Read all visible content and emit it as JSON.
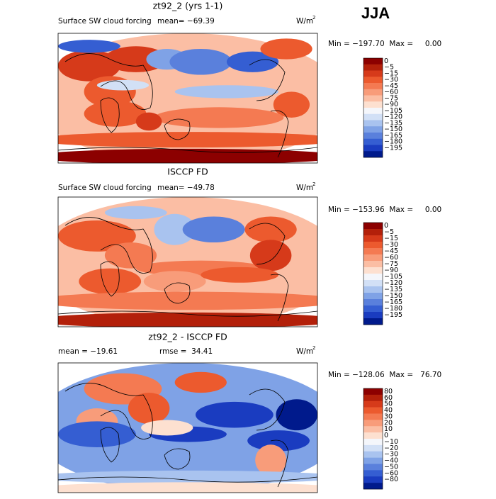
{
  "header": {
    "title": "JJA"
  },
  "panels": [
    {
      "title": "zt92_2 (yrs 1-1)",
      "subtitle": "Surface SW cloud forcing",
      "mean": "mean= −69.39",
      "units": {
        "base": "W/m",
        "sup": "2"
      },
      "range": "Min = −197.70  Max =     0.00",
      "colorbar": {
        "labels": [
          "0",
          "−5",
          "−15",
          "−30",
          "−45",
          "−60",
          "−75",
          "−90",
          "−105",
          "−120",
          "−135",
          "−150",
          "−165",
          "−180",
          "−195"
        ],
        "colors": [
          "#8c0000",
          "#b3200a",
          "#d63a1a",
          "#ec5a2e",
          "#f47a52",
          "#f89c7a",
          "#fbbea4",
          "#fde0d0",
          "#f4f6fb",
          "#d2e0f6",
          "#a9c3ef",
          "#7fa2e6",
          "#5a80dc",
          "#355ed2",
          "#1a3cc0",
          "#001a8c"
        ]
      }
    },
    {
      "title": "ISCCP FD",
      "subtitle": "Surface SW cloud forcing",
      "mean": "mean= −49.78",
      "units": {
        "base": "W/m",
        "sup": "2"
      },
      "range": "Min = −153.96  Max =     0.00",
      "colorbar": {
        "labels": [
          "0",
          "−5",
          "−15",
          "−30",
          "−45",
          "−60",
          "−75",
          "−90",
          "−105",
          "−120",
          "−135",
          "−150",
          "−165",
          "−180",
          "−195"
        ],
        "colors": [
          "#8c0000",
          "#b3200a",
          "#d63a1a",
          "#ec5a2e",
          "#f47a52",
          "#f89c7a",
          "#fbbea4",
          "#fde0d0",
          "#f4f6fb",
          "#d2e0f6",
          "#a9c3ef",
          "#7fa2e6",
          "#5a80dc",
          "#355ed2",
          "#1a3cc0",
          "#001a8c"
        ]
      }
    },
    {
      "title": "zt92_2 - ISCCP FD",
      "mean": "mean = −19.61",
      "rmse": "rmse =  34.41",
      "units": {
        "base": "W/m",
        "sup": "2"
      },
      "range": "Min = −128.06  Max =   76.70",
      "colorbar": {
        "labels": [
          "80",
          "60",
          "50",
          "40",
          "30",
          "20",
          "10",
          "0",
          "−10",
          "−20",
          "−30",
          "−40",
          "−50",
          "−60",
          "−80"
        ],
        "colors": [
          "#8c0000",
          "#b3200a",
          "#d63a1a",
          "#ec5a2e",
          "#f47a52",
          "#f89c7a",
          "#fbbea4",
          "#fde0d0",
          "#f4f6fb",
          "#d2e0f6",
          "#a9c3ef",
          "#7fa2e6",
          "#5a80dc",
          "#355ed2",
          "#1a3cc0",
          "#001a8c"
        ]
      }
    }
  ]
}
